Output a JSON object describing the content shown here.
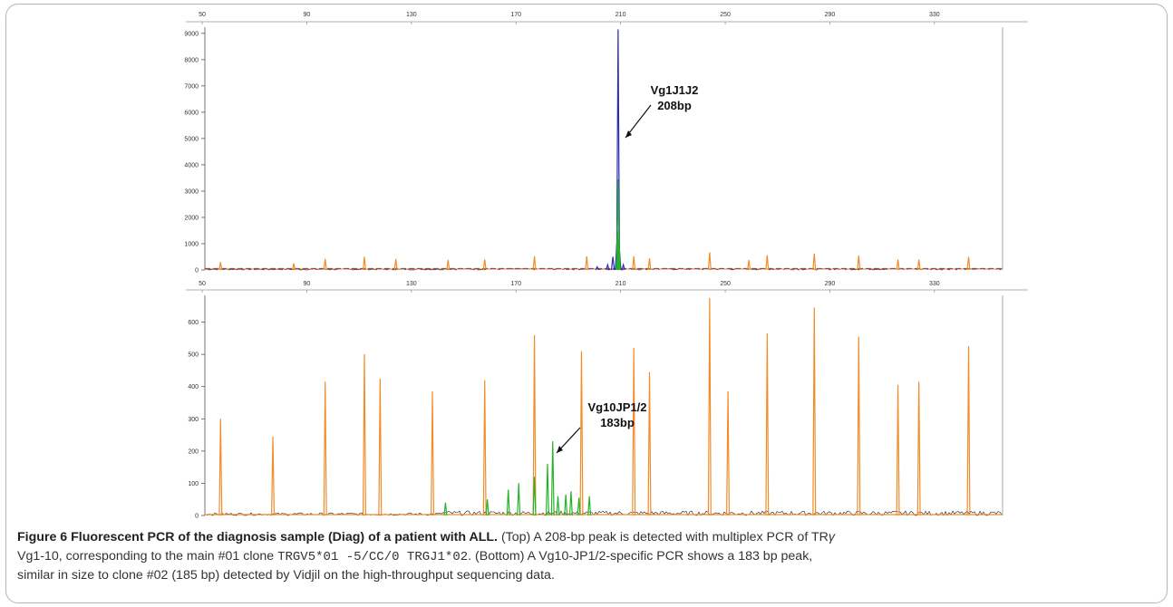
{
  "chart_data": [
    {
      "type": "line",
      "panel": "Top",
      "xticks": [
        50,
        90,
        130,
        170,
        210,
        250,
        290,
        330
      ],
      "yticks": [
        0,
        1000,
        2000,
        3000,
        4000,
        5000,
        6000,
        7000,
        8000,
        9000
      ],
      "xlim": [
        50,
        355
      ],
      "ylim": [
        0,
        9200
      ],
      "grid": false,
      "series": [
        {
          "color": "#f28c28",
          "x": [
            56,
            84,
            96,
            111,
            123,
            143,
            157,
            176,
            196,
            214,
            220,
            243,
            258,
            265,
            283,
            300,
            315,
            323,
            342
          ],
          "y": [
            300,
            250,
            420,
            500,
            420,
            380,
            400,
            520,
            520,
            520,
            440,
            670,
            380,
            560,
            620,
            550,
            400,
            400,
            500
          ]
        },
        {
          "color": "#2b2bb5",
          "x": [
            200,
            204,
            206,
            207.5,
            208,
            208.5,
            210
          ],
          "y": [
            120,
            200,
            500,
            1000,
            9150,
            800,
            200
          ]
        },
        {
          "color": "#27b327",
          "x": [
            207.8,
            208,
            208.3
          ],
          "y": [
            1500,
            3450,
            1200
          ]
        }
      ],
      "annotations": [
        {
          "text": [
            "Vg1J1J2",
            "208bp"
          ],
          "x": 208,
          "y": 9150
        }
      ]
    },
    {
      "type": "line",
      "panel": "Bottom",
      "xticks": [
        50,
        90,
        130,
        170,
        210,
        250,
        290,
        330
      ],
      "yticks": [
        0,
        100,
        200,
        300,
        400,
        500,
        600
      ],
      "xlim": [
        50,
        355
      ],
      "ylim": [
        0,
        700
      ],
      "grid": false,
      "series": [
        {
          "color": "#f28c28",
          "x": [
            56,
            76,
            96,
            111,
            117,
            137,
            157,
            176,
            194,
            214,
            220,
            243,
            250,
            265,
            283,
            300,
            315,
            323,
            342
          ],
          "y": [
            300,
            245,
            415,
            500,
            425,
            385,
            420,
            560,
            510,
            520,
            445,
            675,
            385,
            565,
            645,
            555,
            405,
            415,
            525
          ]
        },
        {
          "color": "#27b327",
          "x": [
            142,
            158,
            166,
            170,
            176,
            181,
            183,
            185,
            188,
            190,
            193,
            197
          ],
          "y": [
            40,
            50,
            80,
            100,
            120,
            160,
            230,
            60,
            65,
            75,
            55,
            60
          ]
        }
      ],
      "annotations": [
        {
          "text": [
            "Vg10JP1/2",
            "183bp"
          ],
          "x": 183,
          "y": 230
        }
      ]
    }
  ],
  "caption": {
    "label": "Figure 6",
    "title": "Fluorescent PCR of the diagnosis sample (Diag) of a patient with ALL.",
    "line1_a": "(Top) A 208-bp peak is detected with multiplex PCR of TR",
    "gamma": "γ",
    "line2_a": "Vg1-10, corresponding to the main #01 clone ",
    "clone_code": "TRGV5*01 -5/CC/0 TRGJ1*02",
    "line2_b": ". (Bottom) A Vg10-JP1/2-specific PCR shows a 183 bp peak,",
    "line3": "similar in size to clone #02 (185 bp) detected by Vidjil on the high-throughput sequencing data."
  }
}
